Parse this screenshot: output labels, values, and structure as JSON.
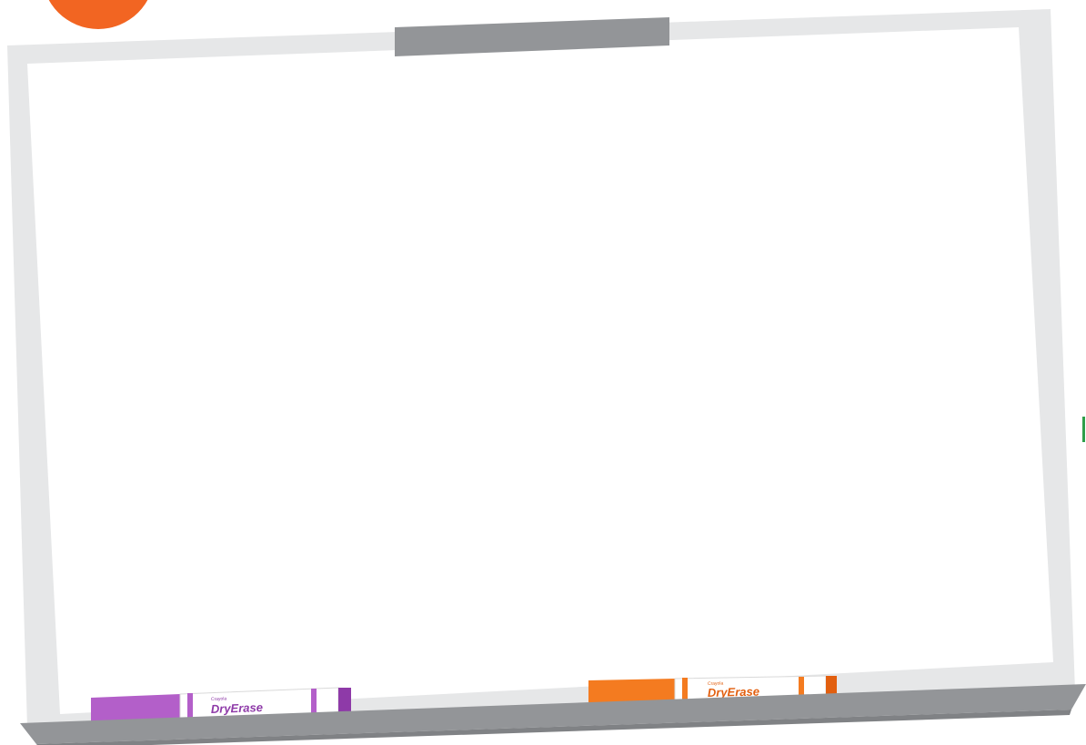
{
  "colors": {
    "badge": "#f26522",
    "frame": "#e6e7e8",
    "board_surface": "#ffffff",
    "clip_and_tray": "#939598",
    "tray_shadow": "#808285",
    "purple_marker": "#b35fc9",
    "purple_marker_dark": "#8e3aa8",
    "orange_marker": "#f47b20",
    "orange_marker_dark": "#e25f0f",
    "edge_accent": "#2e9e49"
  },
  "icons": {
    "badge": "orange-circle-badge",
    "clip": "board-clip-icon",
    "marker_purple": "purple-dry-erase-marker-icon",
    "marker_orange": "orange-dry-erase-marker-icon"
  },
  "markers": {
    "purple": {
      "brand": "DryErase",
      "maker": "Crayola"
    },
    "orange": {
      "brand": "DryErase",
      "maker": "Crayola"
    }
  }
}
